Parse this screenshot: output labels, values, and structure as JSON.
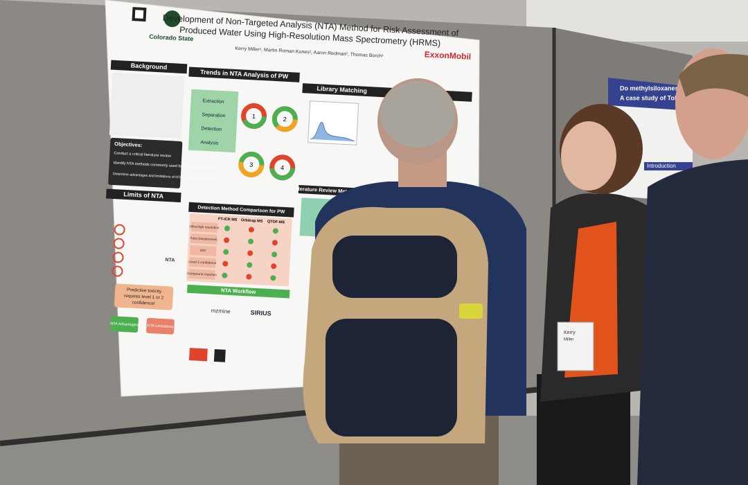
{
  "poster": {
    "title_lines": [
      "Development of Non-Targeted Analysis (NTA) Method for Risk Assessment of",
      "Produced Water Using High-Resolution Mass Spectrometry (HRMS)"
    ],
    "authors": "Kerry Miller¹, Martin Roman Kunes², Aaron Redman², Thomas Borch¹",
    "logos": [
      "Colorado State",
      "ExxonMobil"
    ],
    "sections": {
      "background": "Background",
      "trends": "Trends in NTA Analysis of PW",
      "library": "Library Matching",
      "limits": "Limits of NTA",
      "comparison": "Detection Method Comparison for PW",
      "workflow": "NTA Workflow",
      "literature": "Literature Review Meta-Analysis"
    },
    "objectives": {
      "heading": "Objectives:",
      "items": [
        "Conduct a critical literature review",
        "Identify NTA methods commonly used for PW characterization",
        "Determine advantages and limitations of NTA for PW risk assessment"
      ]
    },
    "workflow_steps": [
      "Extraction",
      "Separation",
      "Detection",
      "Analysis"
    ],
    "donut_labels": [
      "1",
      "2",
      "3",
      "4"
    ],
    "table": {
      "header": [
        "FT-ICR MS",
        "Orbitrap MS",
        "QTOF-MS"
      ],
      "rows": [
        "Ultra-high resolution",
        "Fast (inexpensive)",
        "MS²",
        "Level 2 confidence",
        "Compound matches"
      ]
    },
    "callout": [
      "Predictive toxicity",
      "requires level 1 or 2",
      "confidence!"
    ],
    "tags": [
      "NTA Advantages",
      "NTA Limitations"
    ],
    "level_label": "NTA",
    "software": [
      "mzmine",
      "SIRIUS"
    ]
  },
  "neighbor_poster": {
    "title_lines": [
      "Do methylsiloxanes biomagnif",
      "A case study of Tokyo Bay,"
    ],
    "section": "Introduction"
  },
  "badge": {
    "name": "Kerry",
    "surname": "Miller"
  }
}
